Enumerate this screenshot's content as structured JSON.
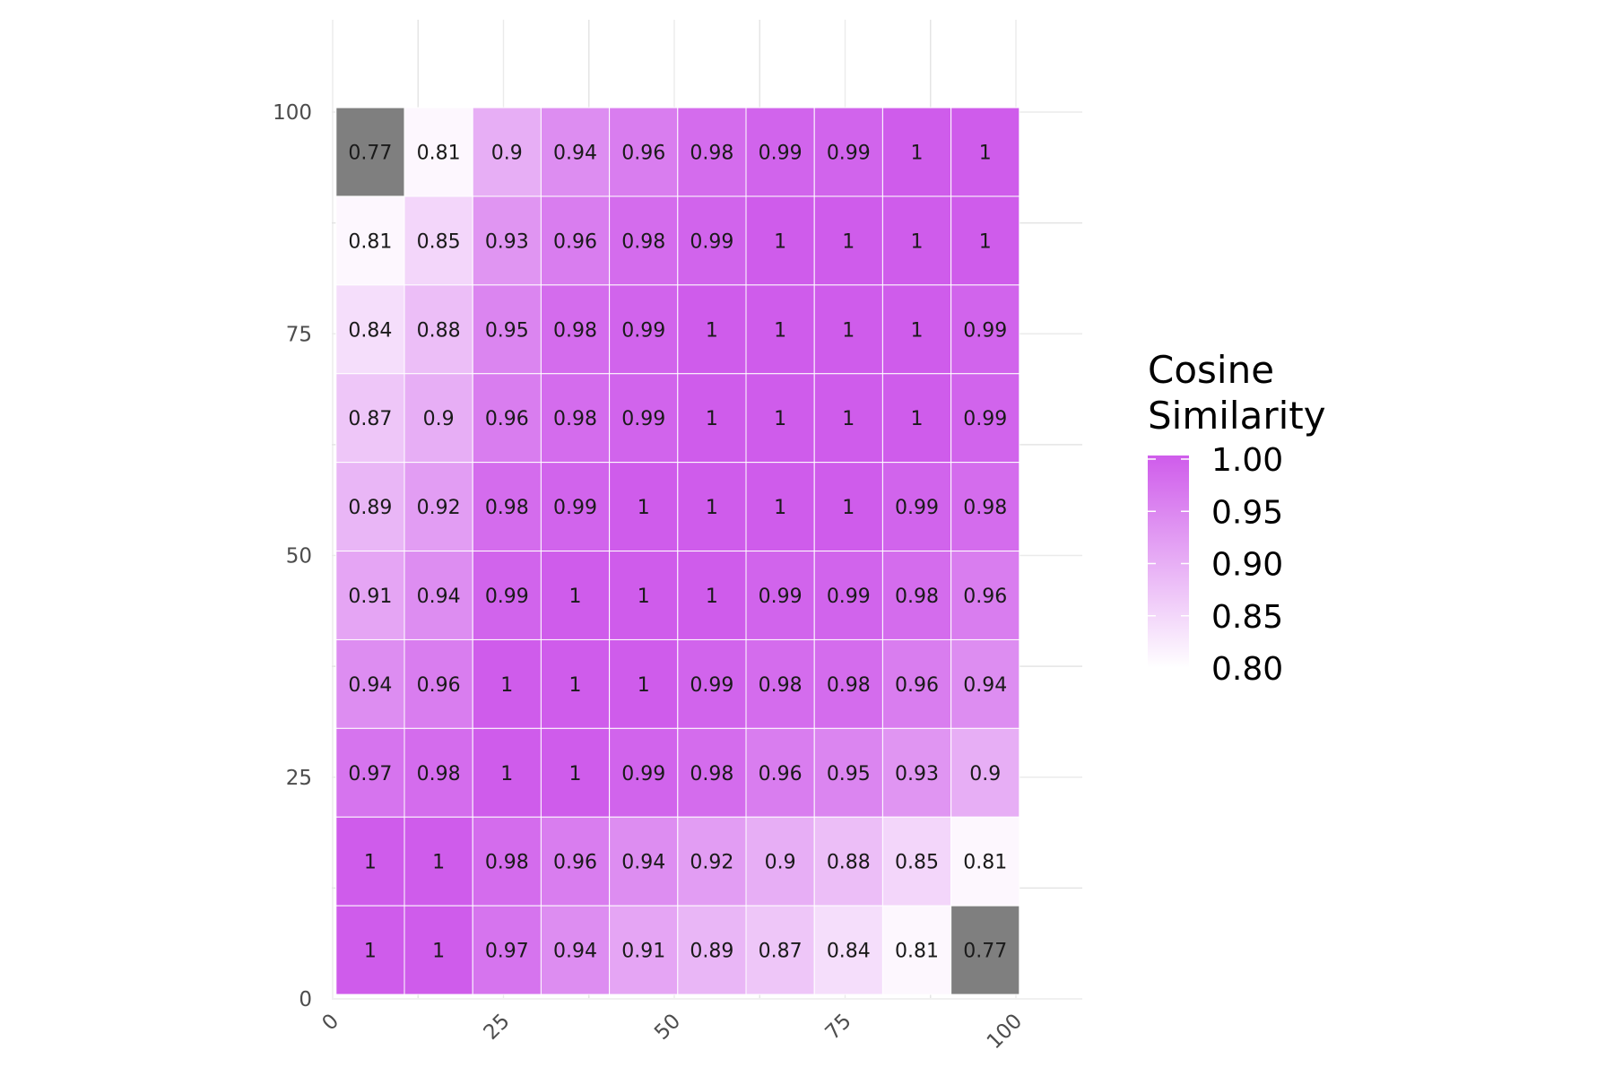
{
  "chart_data": {
    "type": "heatmap",
    "title": "",
    "xlabel": "",
    "ylabel": "",
    "x_ticks": [
      0,
      25,
      50,
      75,
      100
    ],
    "y_ticks": [
      0,
      25,
      50,
      75,
      100
    ],
    "xlim": [
      0,
      100
    ],
    "ylim": [
      0,
      100
    ],
    "grid": true,
    "legend_title_lines": [
      "Cosine",
      "Similarity"
    ],
    "legend_ticks": [
      "1.00",
      "0.95",
      "0.90",
      "0.85",
      "0.80"
    ],
    "legend_values": [
      1.0,
      0.95,
      0.9,
      0.85,
      0.8
    ],
    "legend_position": "right",
    "color_scale": {
      "low": 0.8,
      "high": 1.0,
      "low_color": "#ffffff",
      "high_color": "#cf5ceb",
      "na_color": "#7f7f7f"
    },
    "x_bins": [
      5.5,
      15.5,
      25.5,
      35.5,
      45.5,
      55.5,
      65.5,
      75.5,
      85.5,
      95.5
    ],
    "y_bins_top_to_bottom": [
      95.5,
      85.5,
      75.5,
      65.5,
      55.5,
      45.5,
      35.5,
      25.5,
      15.5,
      5.5
    ],
    "bin_width": 10,
    "cells": [
      [
        "0.77",
        "0.81",
        "0.9",
        "0.94",
        "0.96",
        "0.98",
        "0.99",
        "0.99",
        "1",
        "1"
      ],
      [
        "0.81",
        "0.85",
        "0.93",
        "0.96",
        "0.98",
        "0.99",
        "1",
        "1",
        "1",
        "1"
      ],
      [
        "0.84",
        "0.88",
        "0.95",
        "0.98",
        "0.99",
        "1",
        "1",
        "1",
        "1",
        "0.99"
      ],
      [
        "0.87",
        "0.9",
        "0.96",
        "0.98",
        "0.99",
        "1",
        "1",
        "1",
        "1",
        "0.99"
      ],
      [
        "0.89",
        "0.92",
        "0.98",
        "0.99",
        "1",
        "1",
        "1",
        "1",
        "0.99",
        "0.98"
      ],
      [
        "0.91",
        "0.94",
        "0.99",
        "1",
        "1",
        "1",
        "0.99",
        "0.99",
        "0.98",
        "0.96"
      ],
      [
        "0.94",
        "0.96",
        "1",
        "1",
        "1",
        "0.99",
        "0.98",
        "0.98",
        "0.96",
        "0.94"
      ],
      [
        "0.97",
        "0.98",
        "1",
        "1",
        "0.99",
        "0.98",
        "0.96",
        "0.95",
        "0.93",
        "0.9"
      ],
      [
        "1",
        "1",
        "0.98",
        "0.96",
        "0.94",
        "0.92",
        "0.9",
        "0.88",
        "0.85",
        "0.81"
      ],
      [
        "1",
        "1",
        "0.97",
        "0.94",
        "0.91",
        "0.89",
        "0.87",
        "0.84",
        "0.81",
        "0.77"
      ]
    ]
  }
}
